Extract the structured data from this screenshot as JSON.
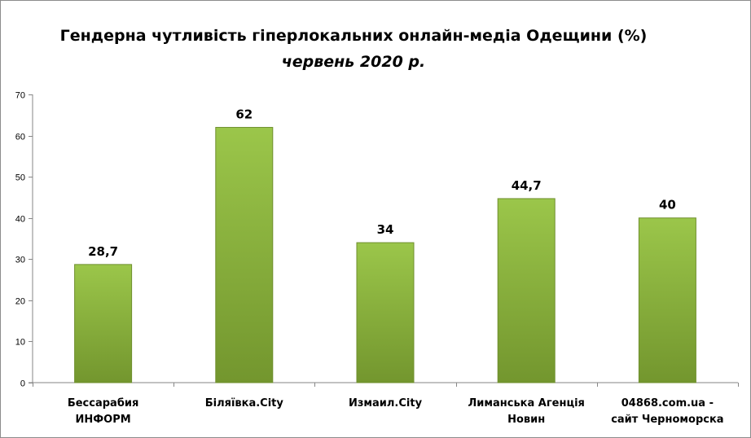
{
  "chart_data": {
    "type": "bar",
    "title": "Гендерна чутливість гіперлокальних онлайн-медіа Одещини (%)",
    "subtitle": "червень 2020 р.",
    "categories": [
      "Бессарабия ИНФОРМ",
      "Біляївка.City",
      "Измаил.City",
      "Лиманська Агенція Новин",
      "04868.com.ua - сайт Черноморска"
    ],
    "values": [
      28.7,
      62,
      34,
      44.7,
      40
    ],
    "data_labels": [
      "28,7",
      "62",
      "34",
      "44,7",
      "40"
    ],
    "ylim": [
      0,
      70
    ],
    "y_ticks": [
      0,
      10,
      20,
      30,
      40,
      50,
      60,
      70
    ],
    "grid": false,
    "legend": "none",
    "bar_color_top": "#9bc64a",
    "bar_color_bottom": "#73962e",
    "bar_border": "#6f8f2e"
  }
}
